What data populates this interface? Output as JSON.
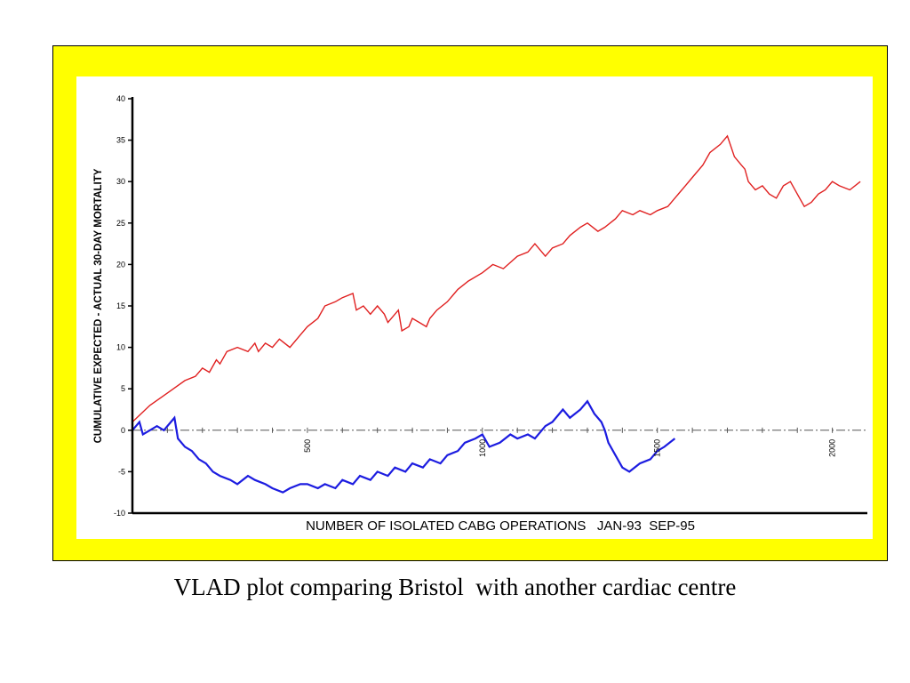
{
  "caption": "VLAD plot comparing Bristol  with another cardiac centre",
  "colors": {
    "frame": "#ffff00",
    "plot_background": "#ffffff",
    "axis": "#000000",
    "zero_line": "#555555"
  },
  "chart_data": {
    "type": "line",
    "title": "",
    "xlabel": "NUMBER OF ISOLATED CABG OPERATIONS   JAN-93  SEP-95",
    "ylabel": "CUMULATIVE  EXPECTED - ACTUAL  30-DAY MORTALITY",
    "xlim": [
      0,
      2100
    ],
    "ylim": [
      -10,
      40
    ],
    "yticks": [
      -10,
      -5,
      0,
      5,
      10,
      15,
      20,
      25,
      30,
      35,
      40
    ],
    "ytick_labels": [
      "-10",
      "-5",
      "0",
      "5",
      "10",
      "15",
      "20",
      "25",
      "30",
      "35",
      "40"
    ],
    "xticks": [
      500,
      1000,
      1500,
      2000
    ],
    "xtick_labels": [
      "500",
      "1000",
      "1500",
      "2000"
    ],
    "grid": false,
    "legend": "none",
    "series": [
      {
        "color": "#e02020",
        "x": [
          0,
          50,
          100,
          150,
          180,
          200,
          220,
          240,
          250,
          270,
          300,
          330,
          350,
          360,
          380,
          400,
          420,
          450,
          480,
          500,
          530,
          550,
          580,
          600,
          630,
          640,
          660,
          680,
          700,
          720,
          730,
          760,
          770,
          790,
          800,
          820,
          840,
          850,
          870,
          900,
          930,
          960,
          1000,
          1030,
          1060,
          1100,
          1130,
          1150,
          1180,
          1200,
          1230,
          1250,
          1280,
          1300,
          1330,
          1350,
          1380,
          1400,
          1430,
          1450,
          1480,
          1500,
          1530,
          1550,
          1580,
          1600,
          1630,
          1650,
          1680,
          1700,
          1720,
          1740,
          1750,
          1760,
          1780,
          1800,
          1820,
          1840,
          1860,
          1880,
          1900,
          1920,
          1940,
          1960,
          1980,
          2000,
          2020,
          2050,
          2080
        ],
        "values": [
          1,
          3,
          4.5,
          6,
          6.5,
          7.5,
          7,
          8.5,
          8,
          9.5,
          10,
          9.5,
          10.5,
          9.5,
          10.5,
          10,
          11,
          10,
          11.5,
          12.5,
          13.5,
          15,
          15.5,
          16,
          16.5,
          14.5,
          15,
          14,
          15,
          14,
          13,
          14.5,
          12,
          12.5,
          13.5,
          13,
          12.5,
          13.5,
          14.5,
          15.5,
          17,
          18,
          19,
          20,
          19.5,
          21,
          21.5,
          22.5,
          21,
          22,
          22.5,
          23.5,
          24.5,
          25,
          24,
          24.5,
          25.5,
          26.5,
          26,
          26.5,
          26,
          26.5,
          27,
          28,
          29.5,
          30.5,
          32,
          33.5,
          34.5,
          35.5,
          33,
          32,
          31.5,
          30,
          29,
          29.5,
          28.5,
          28,
          29.5,
          30,
          28.5,
          27,
          27.5,
          28.5,
          29,
          30,
          29.5,
          29,
          30
        ]
      },
      {
        "color": "#1c1ce0",
        "x": [
          0,
          20,
          30,
          50,
          70,
          90,
          110,
          120,
          130,
          150,
          170,
          190,
          210,
          230,
          250,
          280,
          300,
          330,
          350,
          380,
          400,
          430,
          450,
          480,
          500,
          530,
          550,
          580,
          600,
          630,
          650,
          680,
          700,
          730,
          750,
          780,
          800,
          830,
          850,
          880,
          900,
          930,
          950,
          980,
          1000,
          1020,
          1050,
          1080,
          1100,
          1130,
          1150,
          1180,
          1200,
          1230,
          1250,
          1280,
          1300,
          1320,
          1340,
          1350,
          1360,
          1380,
          1400,
          1420,
          1450,
          1480,
          1500,
          1520,
          1550
        ],
        "values": [
          0,
          1,
          -0.5,
          0,
          0.5,
          0,
          1,
          1.5,
          -1,
          -2,
          -2.5,
          -3.5,
          -4,
          -5,
          -5.5,
          -6,
          -6.5,
          -5.5,
          -6,
          -6.5,
          -7,
          -7.5,
          -7,
          -6.5,
          -6.5,
          -7,
          -6.5,
          -7,
          -6,
          -6.5,
          -5.5,
          -6,
          -5,
          -5.5,
          -4.5,
          -5,
          -4,
          -4.5,
          -3.5,
          -4,
          -3,
          -2.5,
          -1.5,
          -1,
          -0.5,
          -2,
          -1.5,
          -0.5,
          -1,
          -0.5,
          -1,
          0.5,
          1,
          2.5,
          1.5,
          2.5,
          3.5,
          2,
          1,
          0,
          -1.5,
          -3,
          -4.5,
          -5,
          -4,
          -3.5,
          -2.5,
          -2,
          -1
        ]
      }
    ]
  }
}
